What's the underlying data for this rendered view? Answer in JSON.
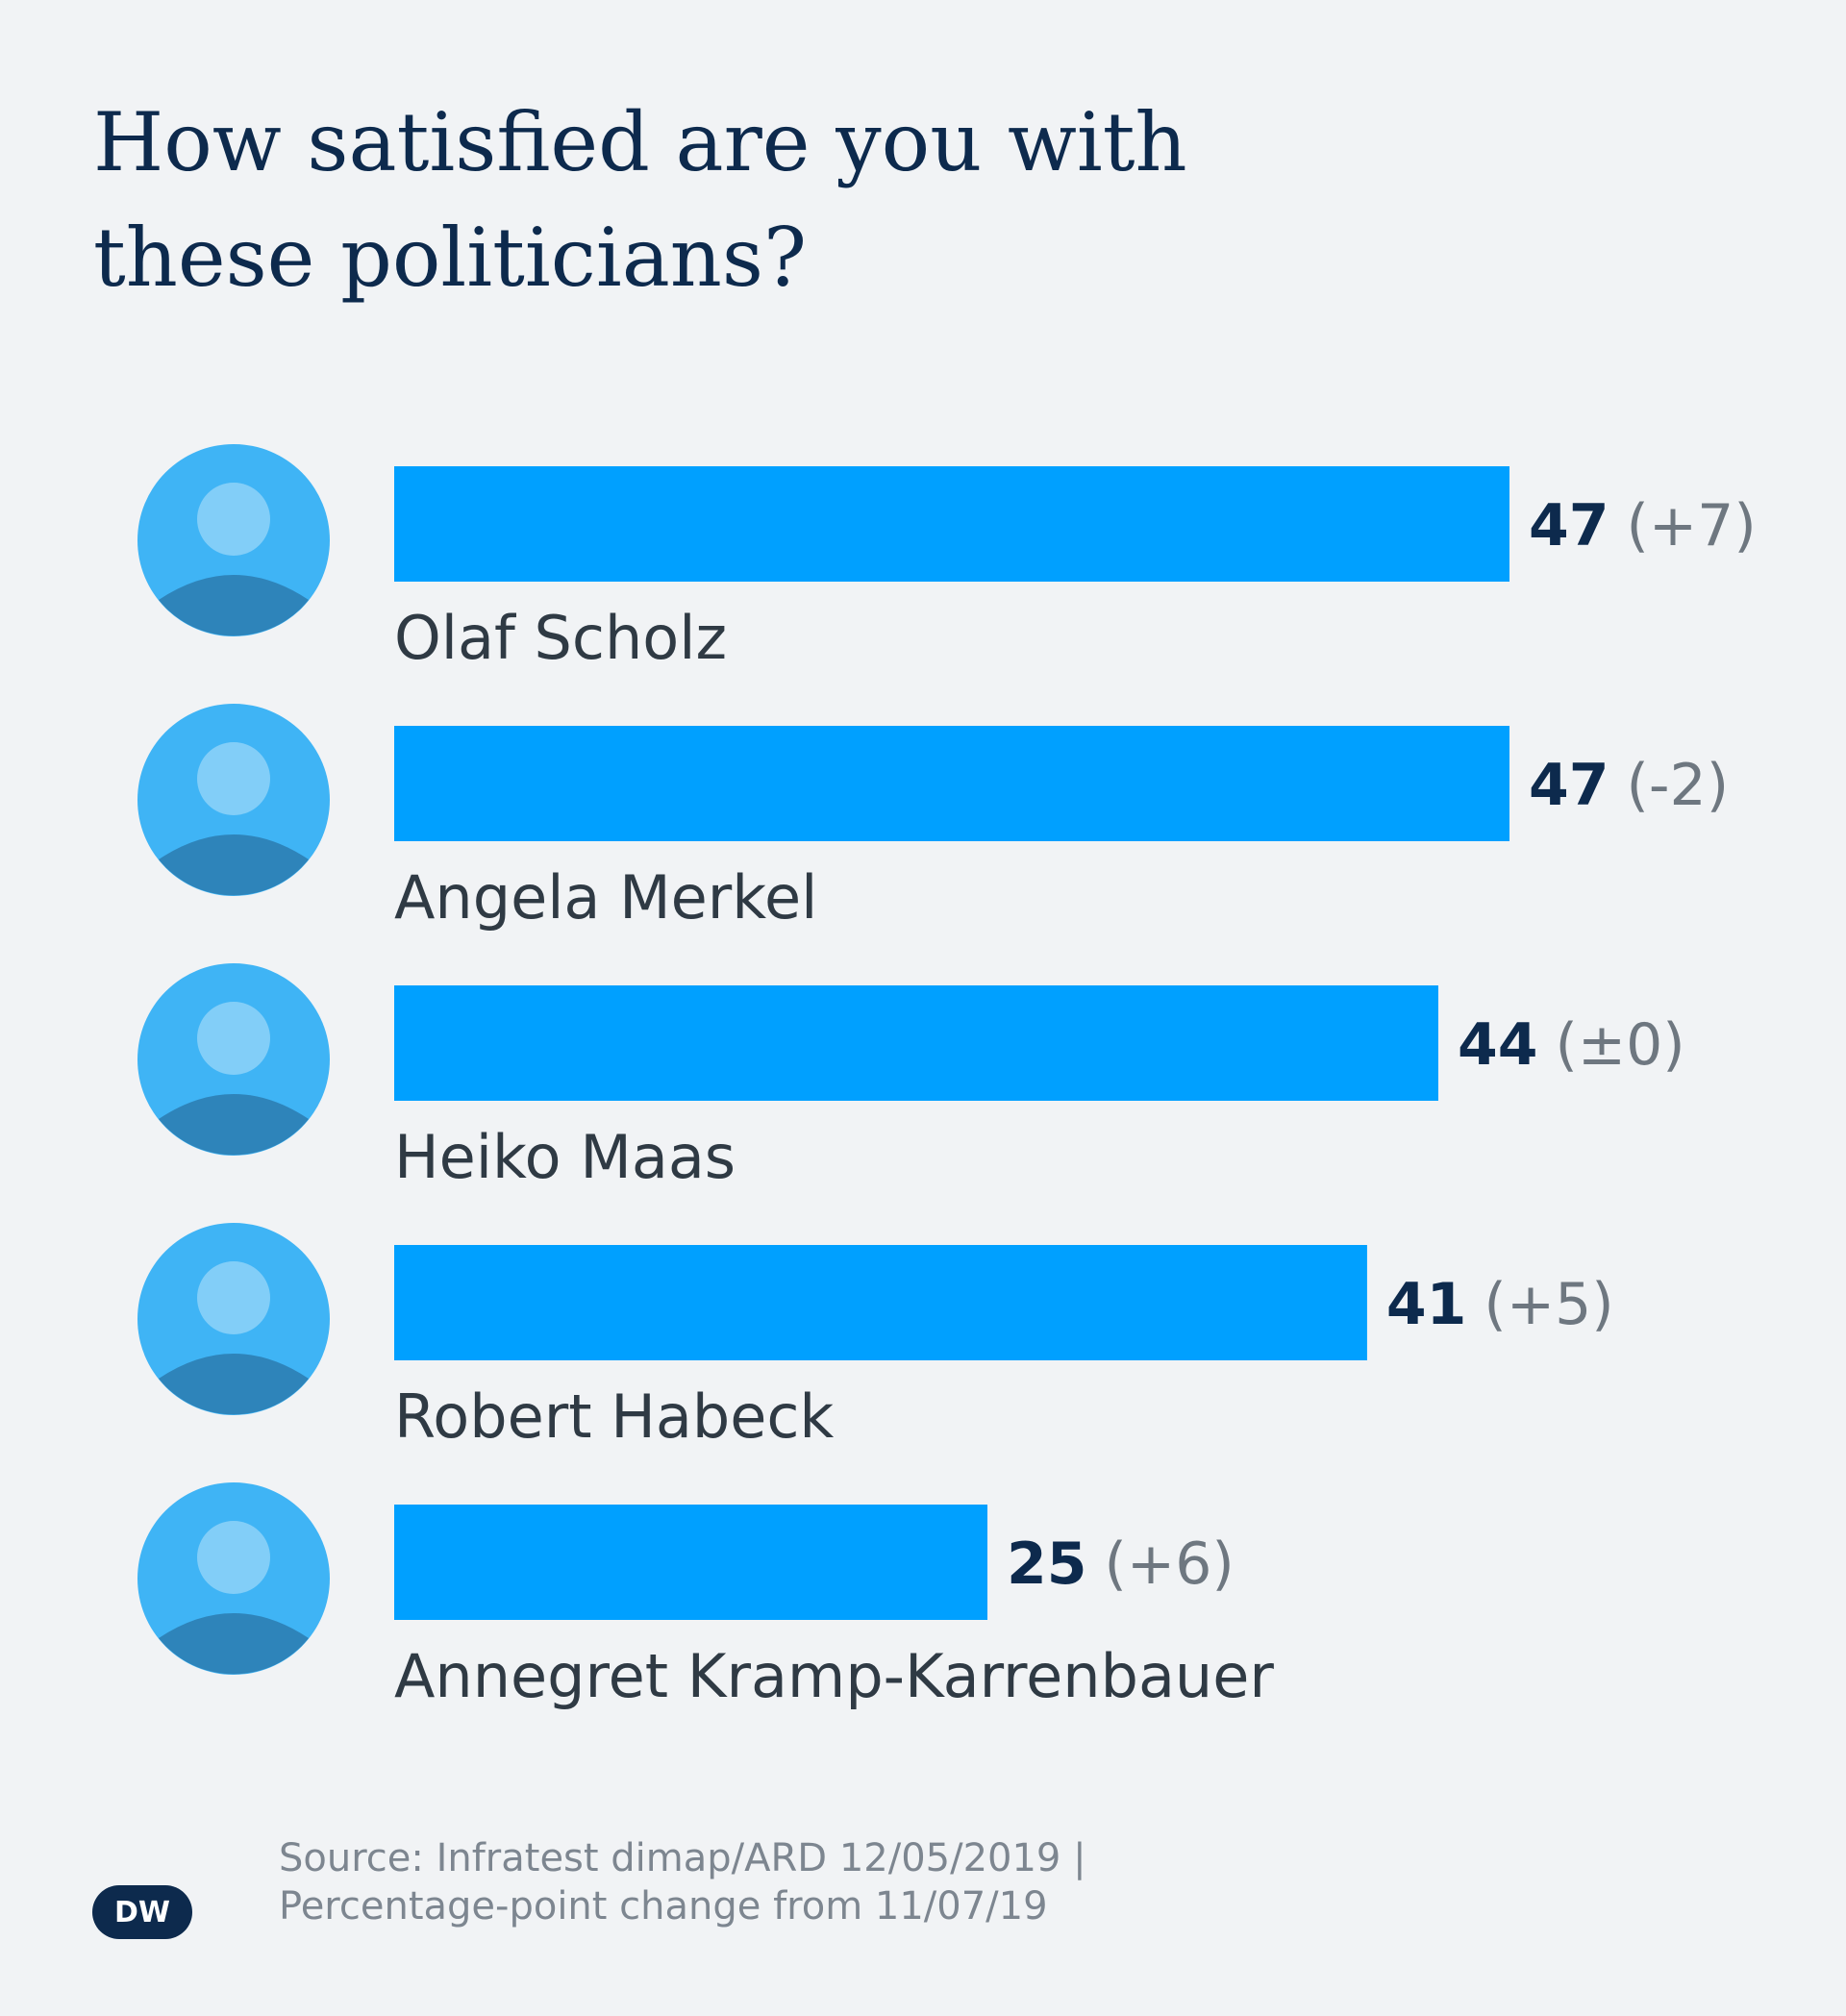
{
  "title": "How satisfied are you with these politicians?",
  "chart_data": {
    "type": "bar",
    "orientation": "horizontal",
    "categories": [
      "Olaf Scholz",
      "Angela Merkel",
      "Heiko Maas",
      "Robert Habeck",
      "Annegret Kramp-Karrenbauer"
    ],
    "values": [
      47,
      47,
      44,
      41,
      25
    ],
    "change_labels": [
      "(+7)",
      "(-2)",
      "(±0)",
      "(+5)",
      "(+6)"
    ],
    "bar_color": "#00a0ff",
    "value_color": "#0d2a4d",
    "change_color": "#6e7780",
    "label_color": "#2f3a44",
    "avatar_color": "#3fb4f5"
  },
  "footer": {
    "source": "Source: Infratest dimap/ARD 12/05/2019 |",
    "note": "Percentage-point change from 11/07/19"
  },
  "logo": {
    "text": "DW",
    "icon": "dw-logo-icon"
  }
}
